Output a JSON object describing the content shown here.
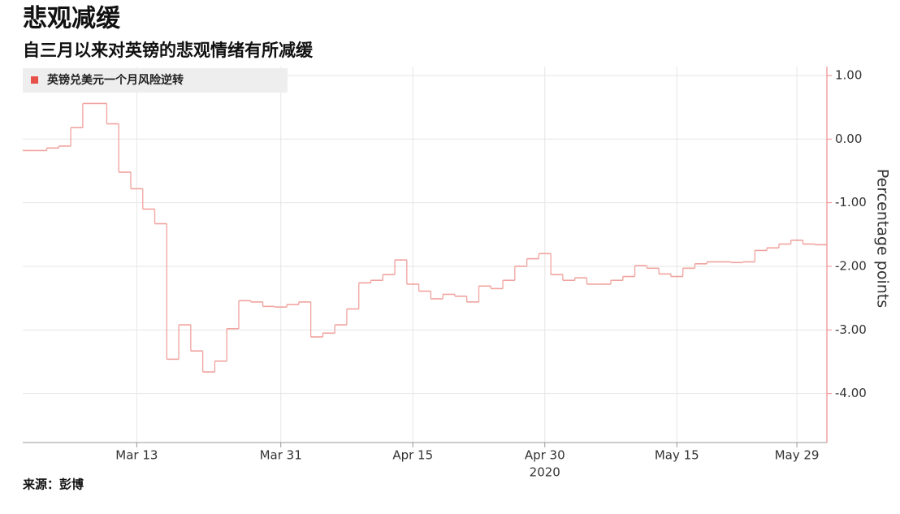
{
  "chart_data": {
    "type": "line",
    "title": "悲观减缓",
    "subtitle": "自三月以来对英镑的悲观情绪有所减缓",
    "source": "来源：彭博",
    "ylabel": "Percentage points",
    "year": "2020",
    "categories": [
      null,
      null,
      null,
      null,
      null,
      null,
      null,
      null,
      null,
      "Mar 13",
      null,
      null,
      null,
      null,
      null,
      null,
      null,
      null,
      null,
      null,
      null,
      "Mar 31",
      null,
      null,
      null,
      null,
      null,
      null,
      null,
      null,
      null,
      null,
      "Apr 15",
      null,
      null,
      null,
      null,
      null,
      null,
      null,
      null,
      null,
      null,
      "Apr 30",
      null,
      null,
      null,
      null,
      null,
      null,
      null,
      null,
      null,
      null,
      "May 15",
      null,
      null,
      null,
      null,
      null,
      null,
      null,
      null,
      null,
      "May 29",
      null,
      null
    ],
    "series": [
      {
        "name": "英镑兑美元一个月风险逆转",
        "color": "#f0a39e",
        "values": [
          -0.18,
          -0.18,
          -0.14,
          -0.11,
          0.18,
          0.56,
          0.56,
          0.24,
          -0.52,
          -0.78,
          -1.1,
          -1.33,
          -3.46,
          -2.92,
          -3.33,
          -3.66,
          -3.49,
          -2.98,
          -2.54,
          -2.56,
          -2.63,
          -2.64,
          -2.6,
          -2.56,
          -3.11,
          -3.05,
          -2.92,
          -2.67,
          -2.26,
          -2.22,
          -2.13,
          -1.9,
          -2.28,
          -2.39,
          -2.51,
          -2.44,
          -2.47,
          -2.56,
          -2.31,
          -2.35,
          -2.22,
          -2.0,
          -1.88,
          -1.8,
          -2.13,
          -2.22,
          -2.18,
          -2.28,
          -2.28,
          -2.22,
          -2.16,
          -1.99,
          -2.03,
          -2.12,
          -2.16,
          -2.03,
          -1.96,
          -1.93,
          -1.93,
          -1.94,
          -1.93,
          -1.75,
          -1.71,
          -1.65,
          -1.59,
          -1.65,
          -1.66
        ]
      }
    ],
    "ylim": [
      -4.77,
      1.14
    ],
    "yticks": [
      {
        "value": 1,
        "label": "1.00"
      },
      {
        "value": 0,
        "label": "0.00"
      },
      {
        "value": -1,
        "label": "-1.00"
      },
      {
        "value": -2,
        "label": "-2.00"
      },
      {
        "value": -3,
        "label": "-3.00"
      },
      {
        "value": -4,
        "label": "-4.00"
      }
    ],
    "axis_color": "#f08c8c",
    "grid": true
  }
}
